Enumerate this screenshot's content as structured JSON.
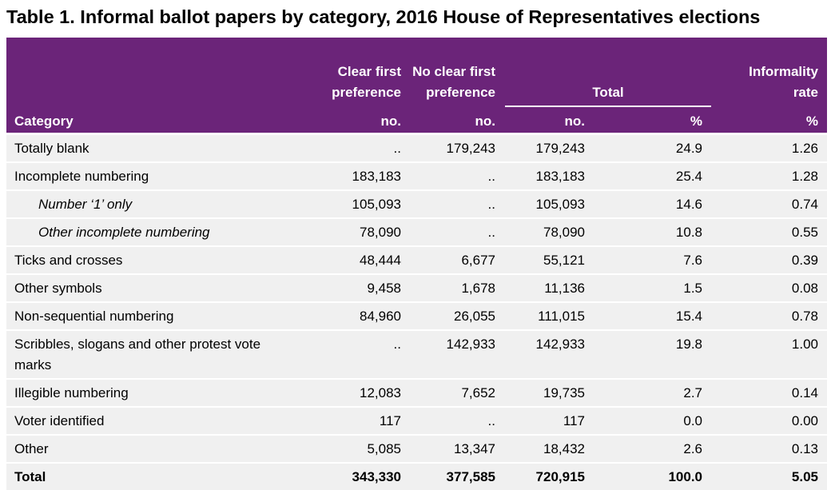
{
  "title": "Table 1. Informal ballot papers by category, 2016 House of Representatives elections",
  "table": {
    "header": {
      "columns": [
        "Clear first preference",
        "No clear first preference",
        "Total",
        "Informality rate"
      ],
      "units": [
        "Category",
        "no.",
        "no.",
        "no.",
        "%",
        "%"
      ]
    },
    "rows": [
      {
        "cells": [
          "Totally blank",
          "..",
          "179,243",
          "179,243",
          "24.9",
          "1.26"
        ]
      },
      {
        "cells": [
          "Incomplete numbering",
          "183,183",
          "..",
          "183,183",
          "25.4",
          "1.28"
        ]
      },
      {
        "cells": [
          "Number ‘1’ only",
          "105,093",
          "..",
          "105,093",
          "14.6",
          "0.74"
        ],
        "emphasis": "italic"
      },
      {
        "cells": [
          "Other incomplete numbering",
          "78,090",
          "..",
          "78,090",
          "10.8",
          "0.55"
        ],
        "emphasis": "italic"
      },
      {
        "cells": [
          "Ticks and crosses",
          "48,444",
          "6,677",
          "55,121",
          "7.6",
          "0.39"
        ]
      },
      {
        "cells": [
          "Other symbols",
          "9,458",
          "1,678",
          "11,136",
          "1.5",
          "0.08"
        ]
      },
      {
        "cells": [
          "Non-sequential numbering",
          "84,960",
          "26,055",
          "111,015",
          "15.4",
          "0.78"
        ]
      },
      {
        "cells": [
          "Scribbles, slogans and other protest vote marks",
          "..",
          "142,933",
          "142,933",
          "19.8",
          "1.00"
        ]
      },
      {
        "cells": [
          "Illegible numbering",
          "12,083",
          "7,652",
          "19,735",
          "2.7",
          "0.14"
        ]
      },
      {
        "cells": [
          "Voter identified",
          "117",
          "..",
          "117",
          "0.0",
          "0.00"
        ]
      },
      {
        "cells": [
          "Other",
          "5,085",
          "13,347",
          "18,432",
          "2.6",
          "0.13"
        ]
      },
      {
        "cells": [
          "Total",
          "343,330",
          "377,585",
          "720,915",
          "100.0",
          "5.05"
        ],
        "emphasis": "bold"
      }
    ]
  }
}
